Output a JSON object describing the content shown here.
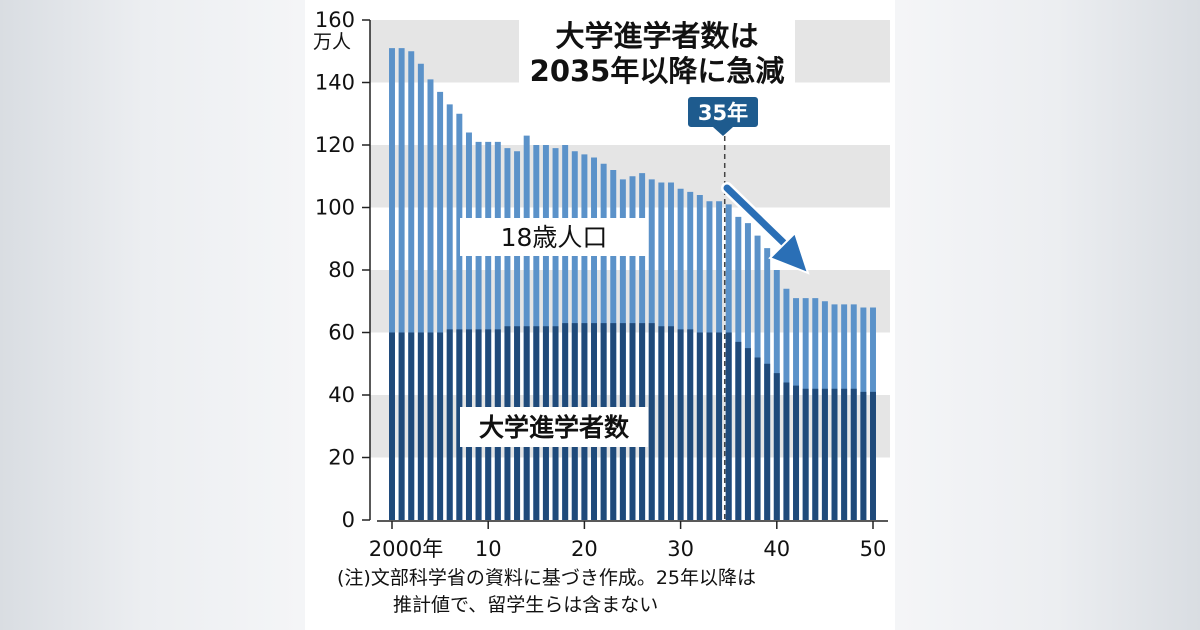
{
  "chart_data": {
    "type": "bar",
    "title_lines": [
      "大学進学者数は",
      "2035年以降に急減"
    ],
    "unit": "万人",
    "ylim": [
      0,
      160
    ],
    "yticks": [
      "0",
      "20",
      "40",
      "60",
      "80",
      "100",
      "120",
      "140",
      "160"
    ],
    "x": [
      2000,
      2001,
      2002,
      2003,
      2004,
      2005,
      2006,
      2007,
      2008,
      2009,
      2010,
      2011,
      2012,
      2013,
      2014,
      2015,
      2016,
      2017,
      2018,
      2019,
      2020,
      2021,
      2022,
      2023,
      2024,
      2025,
      2026,
      2027,
      2028,
      2029,
      2030,
      2031,
      2032,
      2033,
      2034,
      2035,
      2036,
      2037,
      2038,
      2039,
      2040,
      2041,
      2042,
      2043,
      2044,
      2045,
      2046,
      2047,
      2048,
      2049,
      2050
    ],
    "xtick_labels": [
      {
        "x": 2000,
        "label": "2000年"
      },
      {
        "x": 2010,
        "label": "10"
      },
      {
        "x": 2020,
        "label": "20"
      },
      {
        "x": 2030,
        "label": "30"
      },
      {
        "x": 2040,
        "label": "40"
      },
      {
        "x": 2050,
        "label": "50"
      }
    ],
    "series": [
      {
        "name": "18歳人口",
        "color": "#5b92c9",
        "values": [
          151,
          151,
          150,
          146,
          141,
          137,
          133,
          130,
          124,
          121,
          121,
          121,
          119,
          118,
          123,
          120,
          120,
          119,
          120,
          118,
          117,
          116,
          114,
          112,
          109,
          110,
          111,
          109,
          108,
          108,
          106,
          105,
          104,
          102,
          102,
          101,
          97,
          95,
          91,
          87,
          80,
          74,
          71,
          71,
          71,
          70,
          69,
          69,
          69,
          68,
          68
        ]
      },
      {
        "name": "大学進学者数",
        "color": "#1f4a7a",
        "values": [
          60,
          60,
          60,
          60,
          60,
          60,
          61,
          61,
          61,
          61,
          61,
          61,
          62,
          62,
          62,
          62,
          62,
          62,
          63,
          63,
          63,
          63,
          63,
          63,
          63,
          63,
          63,
          63,
          62,
          62,
          61,
          61,
          60,
          60,
          60,
          60,
          57,
          55,
          52,
          50,
          47,
          44,
          43,
          42,
          42,
          42,
          42,
          42,
          42,
          41,
          41
        ]
      }
    ],
    "annotations": {
      "marker_label": "35年",
      "marker_x": 2035,
      "trend_arrow": true
    },
    "note_lines": [
      "(注)文部科学省の資料に基づき作成。25年以降は",
      "推計値で、留学生らは含まない"
    ],
    "grid": "alternating horizontal bands",
    "colors": {
      "band": "#e5e5e5",
      "marker_box": "#1e5b8e",
      "arrow": "#2a6fb6"
    }
  }
}
